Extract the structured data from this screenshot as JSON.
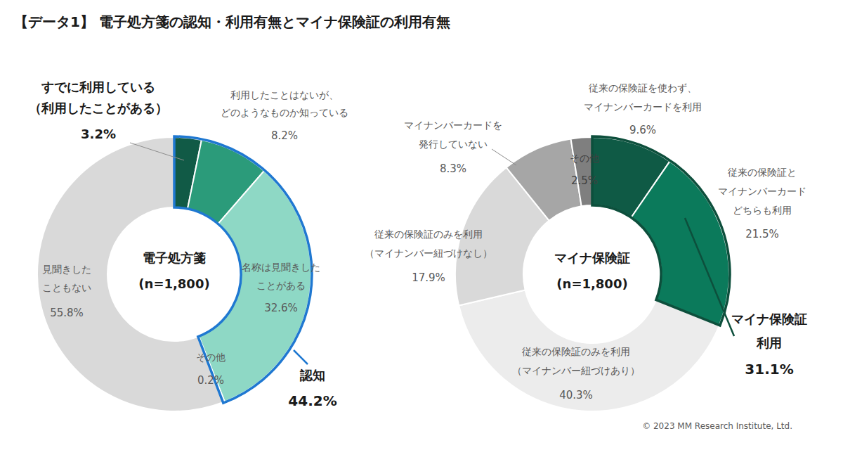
{
  "title": "【データ1】 電子処方箋の認知・利用有無とマイナ保険証の利用有無",
  "copyright": "© 2023 MM Research Institute, Ltd.",
  "chart_data": [
    {
      "type": "pie",
      "title": "電子処方箋",
      "subtitle": "(n=1,800)",
      "categories": [
        "すでに利用している\n（利用したことがある）",
        "利用したことはないが、\nどのようなものか知っている",
        "名称は見聞きした\nことがある",
        "その他",
        "見聞きした\nこともない"
      ],
      "values": [
        3.2,
        8.2,
        32.6,
        0.2,
        55.8
      ],
      "value_labels": [
        "3.2%",
        "8.2%",
        "32.6%",
        "0.2%",
        "55.8%"
      ],
      "colors": [
        "#115a46",
        "#2b9b7a",
        "#8ed8c5",
        "#d9d9d9",
        "#d9d9d9"
      ],
      "data_labels": true,
      "annotations": [
        {
          "text": "認知",
          "value": 44.2,
          "value_label": "44.2%",
          "color": "#1f78d1"
        }
      ]
    },
    {
      "type": "pie",
      "title": "マイナ保険証",
      "subtitle": "(n=1,800)",
      "categories": [
        "従来の保険証を使わず、\nマイナンバーカードを利用",
        "従来の保険証と\nマイナンバーカード\nどちらも利用",
        "従来の保険証のみを利用\n（マイナンバー紐づけあり）",
        "従来の保険証のみを利用\n（マイナンバー紐づけなし）",
        "マイナンバーカードを\n発行していない",
        "その他"
      ],
      "values": [
        9.6,
        21.5,
        40.3,
        17.9,
        8.3,
        2.5
      ],
      "value_labels": [
        "9.6%",
        "21.5%",
        "40.3%",
        "17.9%",
        "8.3%",
        "2.5%"
      ],
      "colors": [
        "#0f5a45",
        "#0b7a5b",
        "#ececec",
        "#d9d9d9",
        "#a6a6a6",
        "#7f7f7f"
      ],
      "data_labels": true,
      "annotations": [
        {
          "text": "マイナ保険証\n利用",
          "value": 31.1,
          "value_label": "31.1%",
          "color": "#0d4f3c"
        }
      ]
    }
  ]
}
